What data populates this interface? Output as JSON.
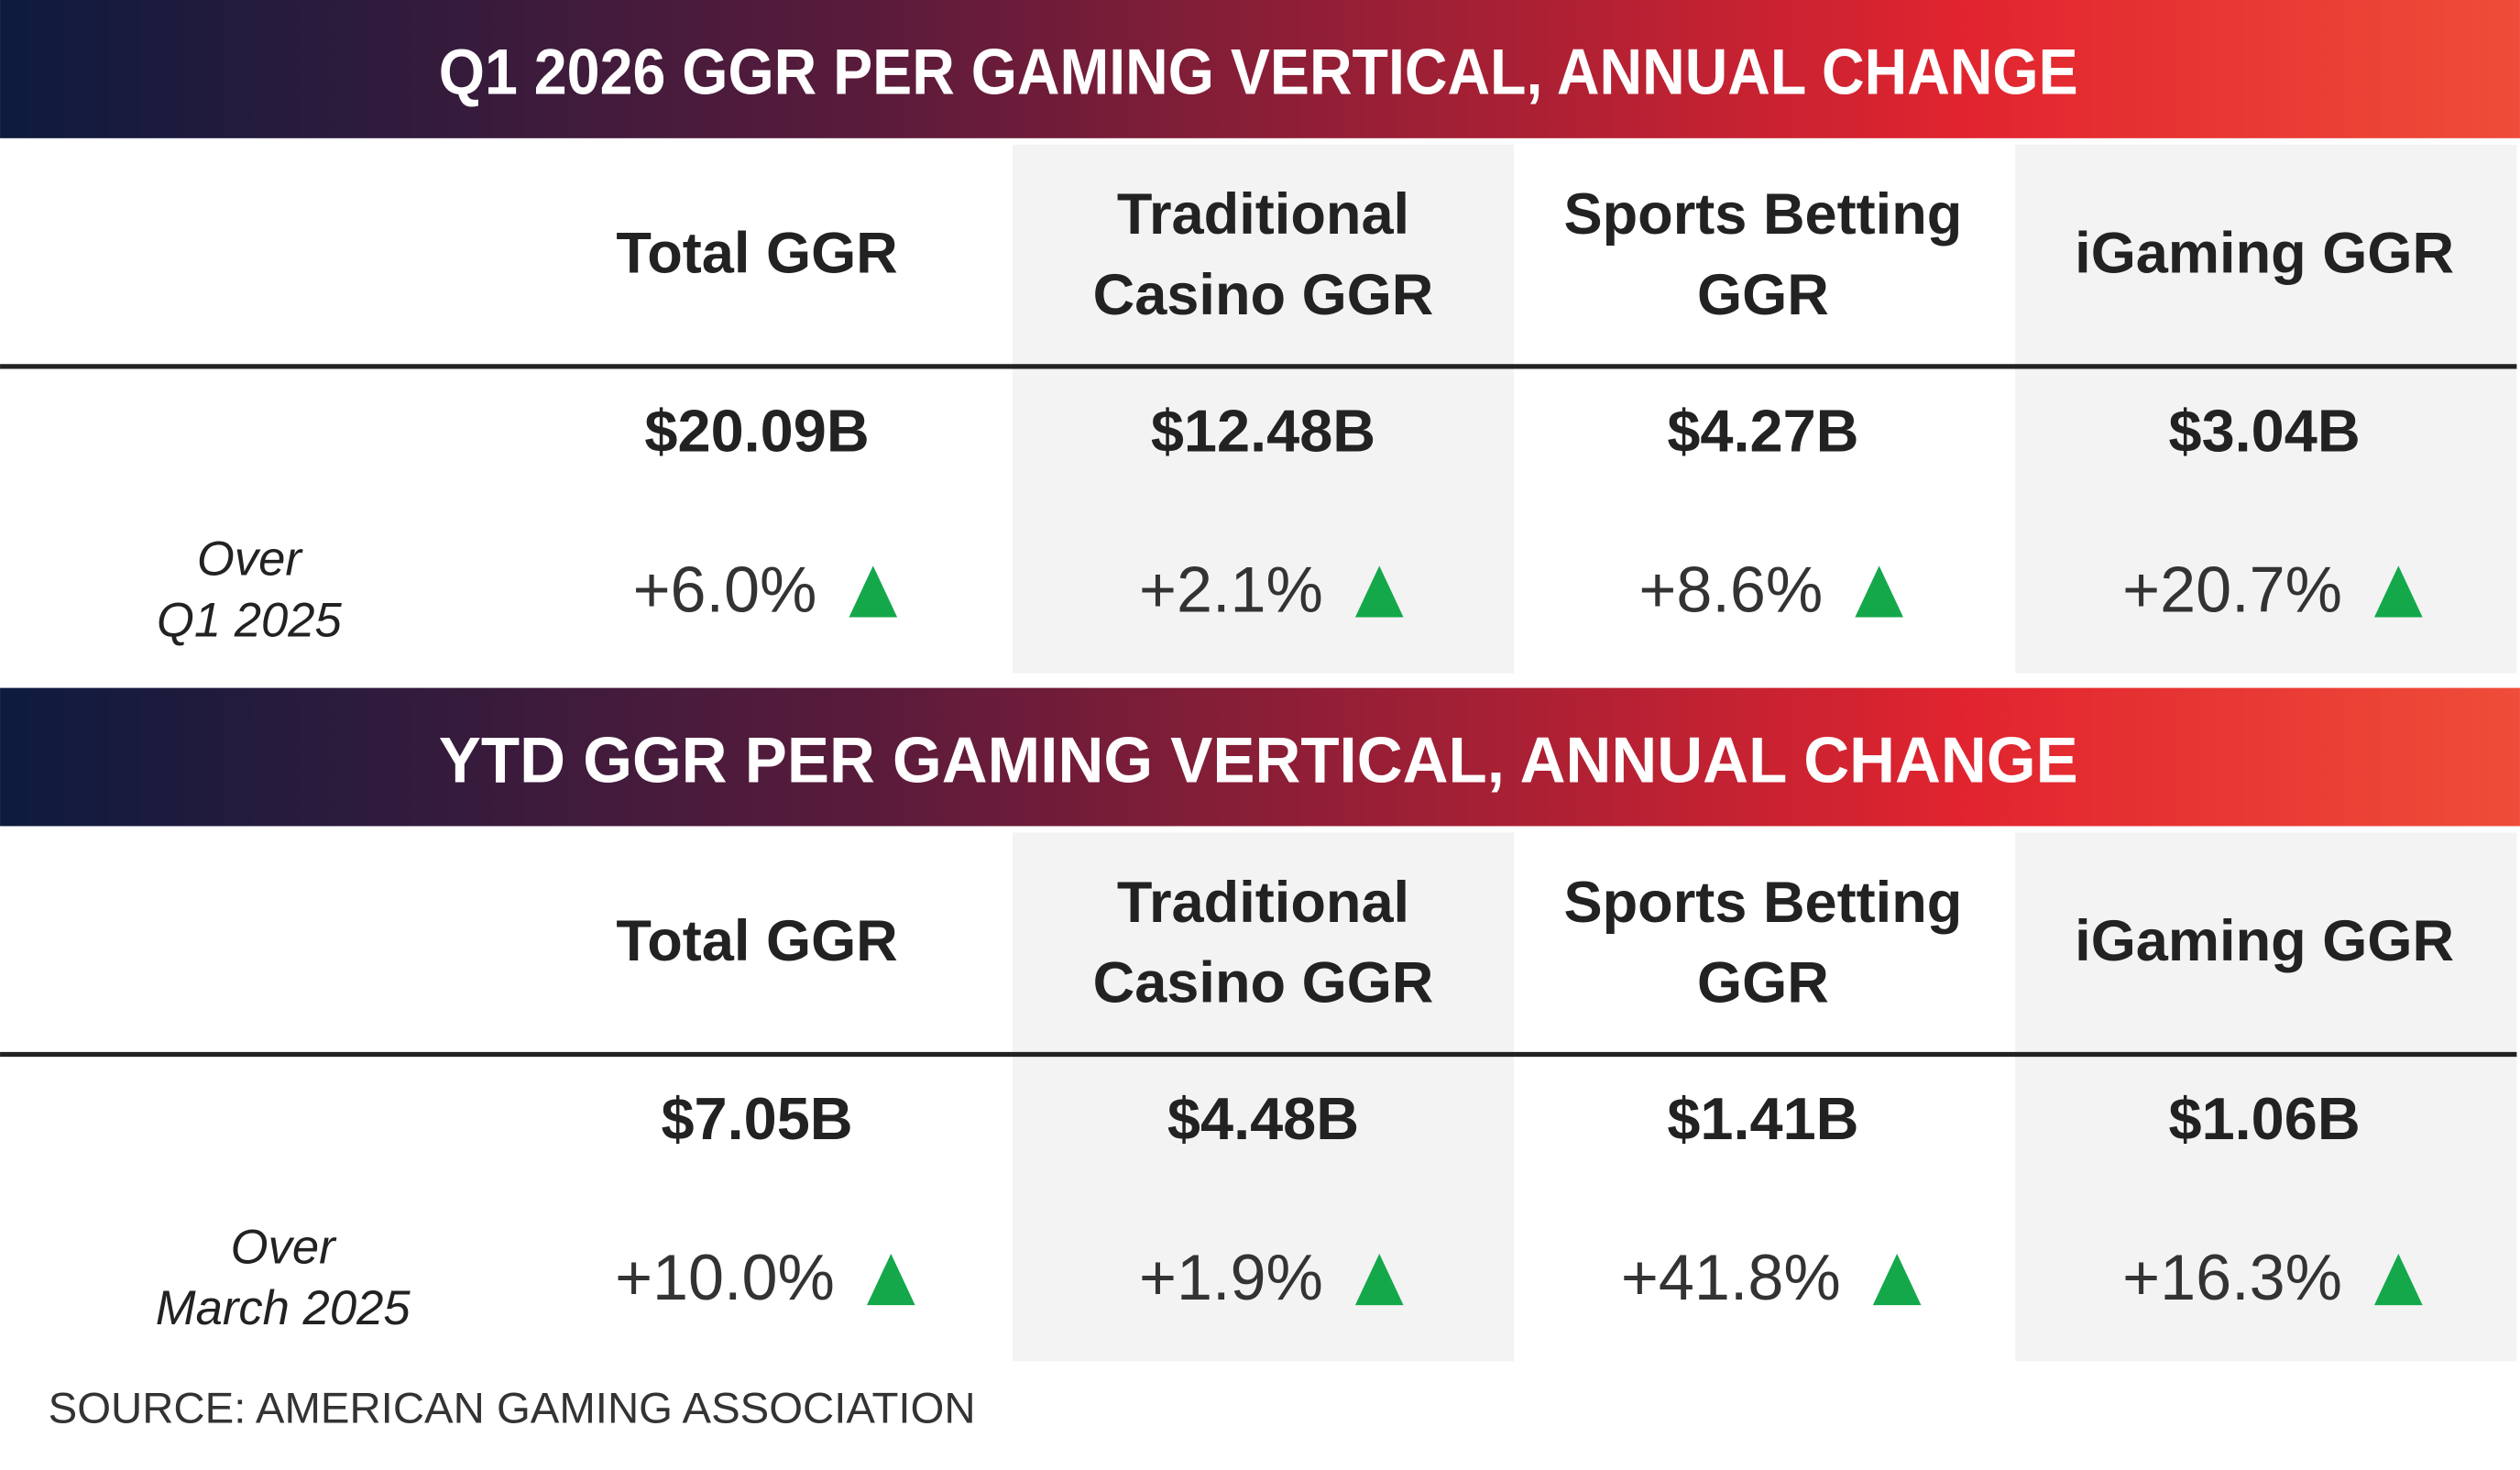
{
  "sections": [
    {
      "title": "Q1 2026 GGR PER GAMING VERTICAL, ANNUAL CHANGE",
      "columns": [
        [
          "Total GGR"
        ],
        [
          "Traditional",
          "Casino GGR"
        ],
        [
          "Sports Betting",
          "GGR"
        ],
        [
          "iGaming GGR"
        ]
      ],
      "row_label": [
        "Over",
        "Q1 2025"
      ],
      "values": [
        "$20.09B",
        "$12.48B",
        "$4.27B",
        "$3.04B"
      ],
      "changes": [
        "+6.0%",
        "+2.1%",
        "+8.6%",
        "+20.7%"
      ]
    },
    {
      "title": "YTD GGR PER GAMING VERTICAL, ANNUAL CHANGE",
      "columns": [
        [
          "Total GGR"
        ],
        [
          "Traditional",
          "Casino GGR"
        ],
        [
          "Sports Betting",
          "GGR"
        ],
        [
          "iGaming GGR"
        ]
      ],
      "row_label": [
        "Over",
        "March 2025"
      ],
      "values": [
        "$7.05B",
        "$4.48B",
        "$1.41B",
        "$1.06B"
      ],
      "changes": [
        "+10.0%",
        "+1.9%",
        "+41.8%",
        "+16.3%"
      ]
    }
  ],
  "source": "SOURCE: AMERICAN GAMING ASSOCIATION"
}
